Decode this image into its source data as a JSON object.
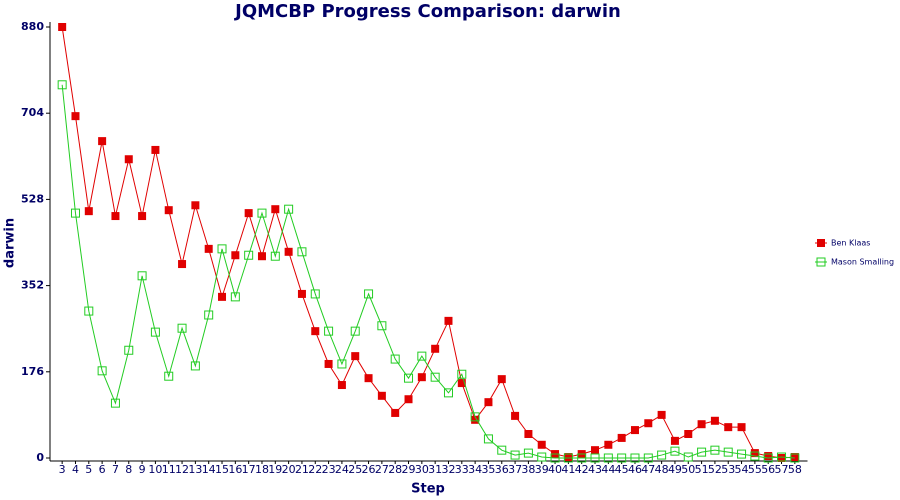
{
  "chart_data": {
    "type": "line",
    "title": "JQMCBP Progress Comparison: darwin",
    "x_label": "Step",
    "y_label": "darwin",
    "categories": [
      3,
      4,
      5,
      6,
      7,
      8,
      9,
      10,
      11,
      12,
      13,
      14,
      15,
      16,
      17,
      18,
      19,
      20,
      21,
      22,
      23,
      24,
      25,
      26,
      27,
      28,
      29,
      30,
      31,
      32,
      33,
      34,
      35,
      36,
      37,
      38,
      39,
      40,
      41,
      42,
      43,
      44,
      45,
      46,
      47,
      48,
      49,
      50,
      51,
      52,
      53,
      54,
      55,
      56,
      57,
      58
    ],
    "series": [
      {
        "name": "Ben Klaas",
        "color": "#e00000",
        "values": [
          880,
          698,
          504,
          647,
          494,
          610,
          494,
          629,
          506,
          396,
          516,
          427,
          329,
          414,
          500,
          412,
          508,
          421,
          335,
          259,
          192,
          149,
          208,
          163,
          127,
          92,
          120,
          165,
          223,
          280,
          153,
          78,
          114,
          161,
          86,
          49,
          27,
          8,
          2,
          8,
          16,
          27,
          41,
          57,
          71,
          88,
          35,
          49,
          69,
          76,
          63,
          63,
          10,
          4,
          0,
          2
        ]
      },
      {
        "name": "Mason Smalling",
        "color": "#22cc22",
        "values": [
          762,
          500,
          300,
          178,
          112,
          220,
          372,
          257,
          167,
          265,
          188,
          292,
          427,
          329,
          414,
          500,
          412,
          508,
          421,
          335,
          259,
          192,
          259,
          335,
          270,
          202,
          163,
          208,
          165,
          133,
          171,
          84,
          39,
          16,
          6,
          10,
          2,
          0,
          0,
          0,
          0,
          0,
          0,
          0,
          0,
          6,
          14,
          2,
          12,
          16,
          12,
          8,
          4,
          0,
          2,
          0
        ]
      }
    ],
    "ylim": [
      0,
      880
    ],
    "yticks": [
      0,
      176,
      352,
      528,
      704,
      880
    ],
    "legend": "right"
  }
}
